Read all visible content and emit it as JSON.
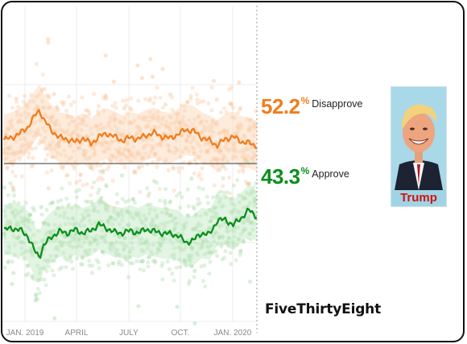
{
  "chart_data": {
    "type": "scatter",
    "title": "",
    "xlabel": "",
    "ylabel": "",
    "x_ticks": [
      "JAN. 2019",
      "APRIL",
      "JULY",
      "OCT.",
      "JAN. 2020"
    ],
    "ylim": [
      30,
      70
    ],
    "series": [
      {
        "name": "Disapprove",
        "color": "#f07d1e",
        "latest_value": "52.2",
        "trend": [
          [
            0,
            53.0
          ],
          [
            10,
            53.3
          ],
          [
            20,
            53.8
          ],
          [
            30,
            54.6
          ],
          [
            40,
            56.2
          ],
          [
            45,
            56.8
          ],
          [
            50,
            55.6
          ],
          [
            60,
            54.2
          ],
          [
            70,
            53.3
          ],
          [
            80,
            53.1
          ],
          [
            90,
            52.7
          ],
          [
            100,
            53.2
          ],
          [
            110,
            52.5
          ],
          [
            120,
            53.4
          ],
          [
            130,
            53.8
          ],
          [
            140,
            53.4
          ],
          [
            150,
            52.9
          ],
          [
            160,
            53.3
          ],
          [
            170,
            53.1
          ],
          [
            180,
            53.6
          ],
          [
            190,
            53.9
          ],
          [
            200,
            53.4
          ],
          [
            210,
            53.2
          ],
          [
            220,
            53.7
          ],
          [
            230,
            54.3
          ],
          [
            240,
            54.1
          ],
          [
            250,
            53.3
          ],
          [
            260,
            52.9
          ],
          [
            270,
            52.3
          ],
          [
            280,
            53.1
          ],
          [
            290,
            53.4
          ],
          [
            300,
            52.8
          ],
          [
            310,
            52.6
          ],
          [
            320,
            52.2
          ]
        ]
      },
      {
        "name": "Approve",
        "color": "#0a8f1d",
        "latest_value": "43.3",
        "trend": [
          [
            0,
            41.6
          ],
          [
            10,
            41.8
          ],
          [
            20,
            41.6
          ],
          [
            30,
            40.8
          ],
          [
            40,
            38.7
          ],
          [
            45,
            38.2
          ],
          [
            50,
            39.6
          ],
          [
            60,
            40.7
          ],
          [
            70,
            41.4
          ],
          [
            80,
            41.2
          ],
          [
            90,
            41.6
          ],
          [
            100,
            41.2
          ],
          [
            110,
            41.5
          ],
          [
            120,
            42.3
          ],
          [
            130,
            41.8
          ],
          [
            140,
            41.3
          ],
          [
            150,
            41.2
          ],
          [
            160,
            41.5
          ],
          [
            170,
            41.2
          ],
          [
            180,
            41.7
          ],
          [
            190,
            41.4
          ],
          [
            200,
            41.2
          ],
          [
            210,
            41.1
          ],
          [
            220,
            40.9
          ],
          [
            230,
            40.0
          ],
          [
            240,
            40.3
          ],
          [
            250,
            41.2
          ],
          [
            260,
            41.0
          ],
          [
            270,
            42.8
          ],
          [
            280,
            42.9
          ],
          [
            290,
            42.2
          ],
          [
            300,
            43.1
          ],
          [
            310,
            44.1
          ],
          [
            320,
            43.3
          ]
        ]
      }
    ],
    "reference_line": 50,
    "grid": true
  },
  "labels": {
    "percent_sign": "%"
  },
  "photo": {
    "caption": "Trump"
  },
  "brand": "FiveThirtyEight"
}
